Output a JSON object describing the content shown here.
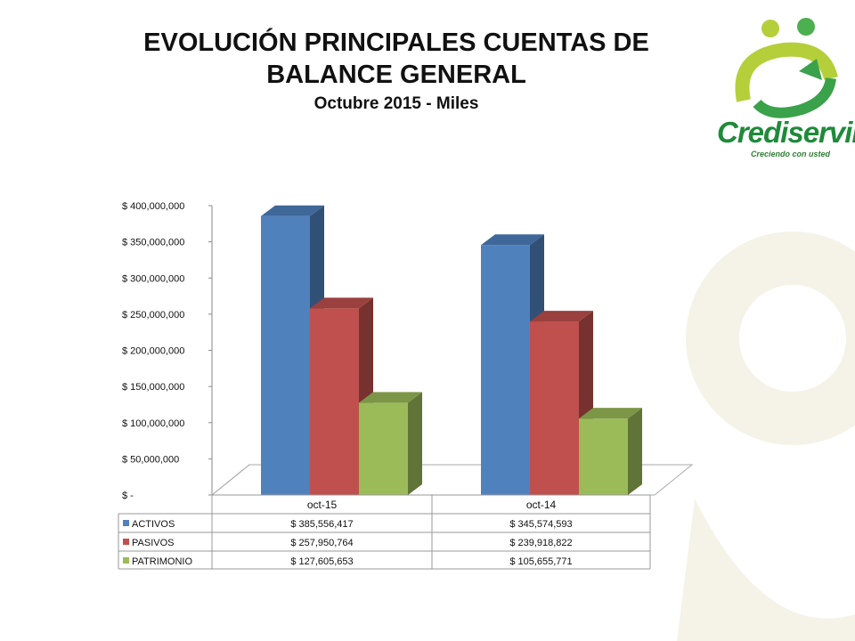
{
  "title_line1": "EVOLUCIÓN PRINCIPALES CUENTAS DE",
  "title_line2": "BALANCE GENERAL",
  "subtitle": "Octubre  2015 - Miles",
  "logo": {
    "name": "Crediservir",
    "tagline": "Creciendo con usted"
  },
  "colors": {
    "activos": "#4f81bd",
    "pasivos": "#c0504d",
    "patrimonio": "#9bbb59"
  },
  "chart_data": {
    "type": "bar",
    "categories": [
      "oct-15",
      "oct-14"
    ],
    "series": [
      {
        "name": "ACTIVOS",
        "values": [
          385556417,
          345574593
        ],
        "labels": [
          "$ 385,556,417",
          "$ 345,574,593"
        ],
        "color": "#4f81bd"
      },
      {
        "name": "PASIVOS",
        "values": [
          257950764,
          239918822
        ],
        "labels": [
          "$ 257,950,764",
          "$ 239,918,822"
        ],
        "color": "#c0504d"
      },
      {
        "name": "PATRIMONIO",
        "values": [
          127605653,
          105655771
        ],
        "labels": [
          "$ 127,605,653",
          "$ 105,655,771"
        ],
        "color": "#9bbb59"
      }
    ],
    "ylim": [
      0,
      400000000
    ],
    "yticks": [
      {
        "value": 0,
        "label": "$ -"
      },
      {
        "value": 50000000,
        "label": "$ 50,000,000"
      },
      {
        "value": 100000000,
        "label": "$ 100,000,000"
      },
      {
        "value": 150000000,
        "label": "$ 150,000,000"
      },
      {
        "value": 200000000,
        "label": "$ 200,000,000"
      },
      {
        "value": 250000000,
        "label": "$ 250,000,000"
      },
      {
        "value": 300000000,
        "label": "$ 300,000,000"
      },
      {
        "value": 350000000,
        "label": "$ 350,000,000"
      },
      {
        "value": 400000000,
        "label": "$ 400,000,000"
      }
    ],
    "bar_style": "3d-clustered",
    "grid": false,
    "data_table": true
  }
}
